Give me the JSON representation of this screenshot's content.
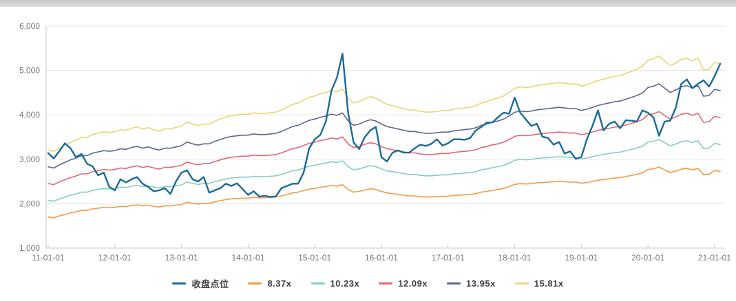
{
  "top_bar": {
    "name": "horizontal-scrollbar"
  },
  "chart_data": {
    "type": "line",
    "title": "",
    "grid": true,
    "legend_position": "bottom",
    "x_axis": {
      "tick_labels": [
        "11-01-01",
        "12-01-01",
        "13-01-01",
        "14-01-01",
        "15-01-01",
        "16-01-01",
        "17-01-01",
        "18-01-01",
        "19-01-01",
        "20-01-01",
        "21-01-01"
      ],
      "start_month": "2011-01",
      "frequency": "monthly",
      "points": 122
    },
    "y_axis": {
      "tick_labels": [
        "1,000",
        "2,000",
        "3,000",
        "4,000",
        "5,000",
        "6,000"
      ],
      "min": 1000,
      "max": 6000,
      "step": 1000
    },
    "series": [
      {
        "id": "close",
        "name": "收盘点位",
        "color": "#1a699c",
        "line_width": 2.4,
        "values": [
          3140,
          3020,
          3180,
          3360,
          3250,
          3050,
          3120,
          2900,
          2840,
          2640,
          2700,
          2380,
          2300,
          2550,
          2480,
          2550,
          2600,
          2450,
          2380,
          2280,
          2300,
          2350,
          2220,
          2500,
          2700,
          2750,
          2550,
          2500,
          2600,
          2250,
          2300,
          2350,
          2450,
          2400,
          2460,
          2330,
          2200,
          2280,
          2160,
          2180,
          2150,
          2165,
          2350,
          2400,
          2450,
          2450,
          2700,
          3250,
          3450,
          3550,
          3850,
          4550,
          4840,
          5380,
          4050,
          3380,
          3230,
          3500,
          3650,
          3730,
          3050,
          2950,
          3150,
          3200,
          3150,
          3150,
          3250,
          3330,
          3300,
          3350,
          3450,
          3310,
          3360,
          3450,
          3450,
          3440,
          3480,
          3650,
          3730,
          3830,
          3830,
          3950,
          4050,
          4030,
          4390,
          4050,
          3900,
          3750,
          3800,
          3510,
          3480,
          3330,
          3390,
          3130,
          3180,
          3010,
          3050,
          3450,
          3750,
          4100,
          3650,
          3800,
          3850,
          3700,
          3880,
          3870,
          3850,
          4100,
          4050,
          3940,
          3530,
          3850,
          3870,
          4160,
          4700,
          4800,
          4600,
          4700,
          4780,
          4640,
          4870,
          5150
        ]
      }
    ],
    "valuation_bands": {
      "description": "PE valuation channel lines; each band value = eps_base[i] * pe_multiple",
      "eps_base": [
        203,
        201,
        206,
        210,
        214,
        217,
        221,
        221,
        225,
        227,
        229,
        228,
        229,
        232,
        231,
        234,
        236,
        233,
        235,
        232,
        230,
        233,
        233,
        235,
        237,
        243,
        240,
        238,
        240,
        240,
        244,
        247,
        250,
        252,
        253,
        254,
        254,
        256,
        255,
        255,
        256,
        257,
        260,
        264,
        268,
        270,
        274,
        278,
        280,
        283,
        285,
        288,
        286,
        290,
        277,
        270,
        272,
        276,
        279,
        277,
        272,
        268,
        266,
        264,
        262,
        260,
        260,
        258,
        257,
        257,
        258,
        259,
        259,
        261,
        262,
        263,
        264,
        266,
        270,
        272,
        275,
        277,
        280,
        285,
        291,
        293,
        292,
        293,
        295,
        296,
        297,
        298,
        299,
        298,
        297,
        297,
        294,
        296,
        299,
        302,
        304,
        306,
        308,
        309,
        312,
        315,
        318,
        322,
        331,
        333,
        337,
        330,
        323,
        327,
        332,
        334,
        330,
        334,
        317,
        318,
        328,
        326
      ],
      "items": [
        {
          "id": "pe-8.37x",
          "name": "8.37x",
          "pe_multiple": 8.37,
          "color": "#f59a45",
          "line_width": 1.6
        },
        {
          "id": "pe-10.23x",
          "name": "10.23x",
          "pe_multiple": 10.23,
          "color": "#85cdc4",
          "line_width": 1.6
        },
        {
          "id": "pe-12.09x",
          "name": "12.09x",
          "pe_multiple": 12.09,
          "color": "#e5676e",
          "line_width": 1.6
        },
        {
          "id": "pe-13.95x",
          "name": "13.95x",
          "pe_multiple": 13.95,
          "color": "#5d6496",
          "line_width": 1.6
        },
        {
          "id": "pe-15.81x",
          "name": "15.81x",
          "pe_multiple": 15.81,
          "color": "#ecd377",
          "line_width": 1.6
        }
      ]
    },
    "legend_items": [
      {
        "id": "close",
        "label": "收盘点位",
        "color": "#1a699c"
      },
      {
        "id": "pe-8.37x",
        "label": "8.37x",
        "color": "#f59a45"
      },
      {
        "id": "pe-10.23x",
        "label": "10.23x",
        "color": "#85cdc4"
      },
      {
        "id": "pe-12.09x",
        "label": "12.09x",
        "color": "#e5676e"
      },
      {
        "id": "pe-13.95x",
        "label": "13.95x",
        "color": "#5d6496"
      },
      {
        "id": "pe-15.81x",
        "label": "15.81x",
        "color": "#ecd377"
      }
    ]
  },
  "style_colors": {
    "grid_line": "#e6e6e6",
    "y_axis_line": "#b9c7d6",
    "x_axis_line": "#cbcbcb",
    "tick": "#cbcbcb",
    "tick_label": "#767676",
    "legend_text": "#404040"
  }
}
